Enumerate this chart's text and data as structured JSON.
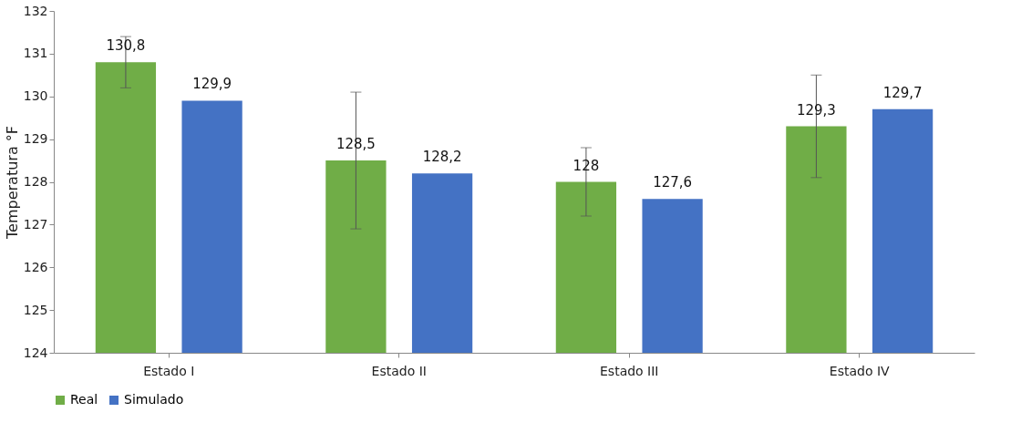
{
  "chart_data": {
    "type": "bar",
    "ylabel": "Temperatura  °F",
    "categories": [
      "Estado I",
      "Estado II",
      "Estado III",
      "Estado IV"
    ],
    "series": [
      {
        "name": "Real",
        "color": "#70ad47",
        "values": [
          130.8,
          128.5,
          128,
          129.3
        ],
        "errors": [
          0.6,
          1.6,
          0.8,
          1.2
        ],
        "value_labels": [
          "130,8",
          "128,5",
          "128",
          "129,3"
        ]
      },
      {
        "name": "Simulado",
        "color": "#4472c4",
        "values": [
          129.9,
          128.2,
          127.6,
          129.7
        ],
        "value_labels": [
          "129,9",
          "128,2",
          "127,6",
          "129,7"
        ]
      }
    ],
    "ylim": [
      124,
      132
    ],
    "yticks": [
      124,
      125,
      126,
      127,
      128,
      129,
      130,
      131,
      132
    ],
    "grid": false,
    "legend": "bottom"
  }
}
